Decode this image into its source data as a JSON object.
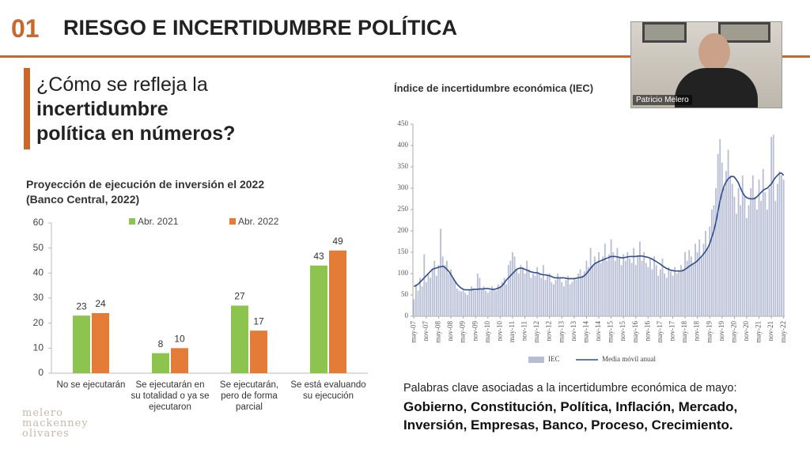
{
  "header": {
    "number": "01",
    "title": "RIESGO E INCERTIDUMBRE POLÍTICA"
  },
  "question": [
    "¿Cómo se refleja la",
    "incertidumbre",
    "política en números?"
  ],
  "keywords": {
    "intro": "Palabras clave asociadas a la incertidumbre económica de mayo:",
    "lines": [
      "Gobierno, Constitución, Política, Inflación, Mercado,",
      "Inversión, Empresas, Banco, Proceso, Crecimiento."
    ]
  },
  "logo": [
    "melero",
    "mackenney",
    "olivares"
  ],
  "webcam": {
    "name": "Patricio Melero"
  },
  "chart_data": [
    {
      "type": "bar",
      "title": [
        "Proyección de ejecución de inversión el 2022",
        "(Banco Central, 2022)"
      ],
      "categories": [
        "No se ejecutarán",
        "Se ejecutarán en su totalidad o ya se ejecutaron",
        "Se ejecutarán, pero de forma parcial",
        "Se está evaluando su ejecución"
      ],
      "series": [
        {
          "name": "Abr. 2021",
          "color": "#8dc450",
          "values": [
            23,
            8,
            27,
            43
          ]
        },
        {
          "name": "Abr. 2022",
          "color": "#e47b37",
          "values": [
            24,
            10,
            17,
            49
          ]
        }
      ],
      "ylim": [
        0,
        60
      ],
      "yticks": [
        0,
        10,
        20,
        30,
        40,
        50,
        60
      ]
    },
    {
      "type": "bar-line",
      "title": "Índice de incertidumbre económica  (IEC)",
      "categories": [
        "may-07",
        null,
        null,
        null,
        null,
        null,
        "nov-07",
        null,
        null,
        null,
        null,
        null,
        "may-08",
        null,
        null,
        null,
        null,
        null,
        "nov-08",
        null,
        null,
        null,
        null,
        null,
        "may-09",
        null,
        null,
        null,
        null,
        null,
        "nov-09",
        null,
        null,
        null,
        null,
        null,
        "may-10",
        null,
        null,
        null,
        null,
        null,
        "nov-10",
        null,
        null,
        null,
        null,
        null,
        "may-11",
        null,
        null,
        null,
        null,
        null,
        "nov-11",
        null,
        null,
        null,
        null,
        null,
        "may-12",
        null,
        null,
        null,
        null,
        null,
        "nov-12",
        null,
        null,
        null,
        null,
        null,
        "may-13",
        null,
        null,
        null,
        null,
        null,
        "nov-13",
        null,
        null,
        null,
        null,
        null,
        "may-14",
        null,
        null,
        null,
        null,
        null,
        "nov-14",
        null,
        null,
        null,
        null,
        null,
        "may-15",
        null,
        null,
        null,
        null,
        null,
        "nov-15",
        null,
        null,
        null,
        null,
        null,
        "may-16",
        null,
        null,
        null,
        null,
        null,
        "nov-16",
        null,
        null,
        null,
        null,
        null,
        "may-17",
        null,
        null,
        null,
        null,
        null,
        "nov-17",
        null,
        null,
        null,
        null,
        null,
        "may-18",
        null,
        null,
        null,
        null,
        null,
        "nov-18",
        null,
        null,
        null,
        null,
        null,
        "may-19",
        null,
        null,
        null,
        null,
        null,
        "nov-19",
        null,
        null,
        null,
        null,
        null,
        "may-20",
        null,
        null,
        null,
        null,
        null,
        "nov-20",
        null,
        null,
        null,
        null,
        null,
        "may-21",
        null,
        null,
        null,
        null,
        null,
        "nov-21",
        null,
        null,
        null,
        null,
        null,
        "may-22"
      ],
      "series": [
        {
          "name": "IEC",
          "color": "#b7bdd4",
          "values": [
            40,
            75,
            60,
            90,
            70,
            145,
            80,
            100,
            90,
            110,
            130,
            95,
            120,
            205,
            140,
            120,
            130,
            100,
            110,
            90,
            80,
            65,
            60,
            58,
            60,
            55,
            50,
            60,
            70,
            65,
            60,
            100,
            90,
            65,
            70,
            60,
            55,
            60,
            70,
            65,
            60,
            75,
            70,
            80,
            90,
            75,
            120,
            130,
            150,
            140,
            110,
            100,
            120,
            115,
            100,
            130,
            110,
            90,
            100,
            95,
            115,
            100,
            90,
            120,
            85,
            95,
            100,
            80,
            75,
            85,
            100,
            90,
            80,
            70,
            85,
            95,
            75,
            80,
            90,
            85,
            100,
            110,
            95,
            105,
            130,
            115,
            160,
            120,
            140,
            125,
            150,
            125,
            140,
            170,
            130,
            145,
            180,
            150,
            130,
            160,
            140,
            120,
            145,
            130,
            150,
            135,
            125,
            160,
            120,
            140,
            175,
            130,
            150,
            125,
            115,
            135,
            110,
            140,
            120,
            95,
            110,
            135,
            100,
            90,
            115,
            105,
            95,
            115,
            100,
            105,
            120,
            110,
            150,
            130,
            155,
            140,
            125,
            170,
            150,
            180,
            140,
            170,
            200,
            160,
            210,
            250,
            260,
            300,
            380,
            415,
            360,
            300,
            340,
            390,
            330,
            310,
            280,
            240,
            300,
            260,
            330,
            280,
            230,
            260,
            300,
            330,
            280,
            250,
            320,
            270,
            345,
            290,
            250,
            300,
            420,
            425,
            270,
            310,
            340,
            330,
            320
          ]
        },
        {
          "name": "Media móvil anual",
          "color": "#2f4d8e",
          "values": [
            70,
            72,
            75,
            80,
            85,
            90,
            95,
            100,
            105,
            110,
            112,
            113,
            115,
            116,
            117,
            115,
            110,
            105,
            98,
            90,
            82,
            75,
            70,
            66,
            63,
            62,
            62,
            62,
            62,
            63,
            63,
            63,
            64,
            64,
            64,
            65,
            65,
            64,
            63,
            63,
            64,
            66,
            68,
            72,
            78,
            85,
            90,
            95,
            100,
            105,
            110,
            112,
            113,
            112,
            110,
            108,
            106,
            104,
            103,
            102,
            102,
            100,
            98,
            97,
            97,
            96,
            95,
            93,
            91,
            90,
            90,
            90,
            90,
            90,
            89,
            88,
            88,
            88,
            88,
            89,
            90,
            91,
            92,
            95,
            100,
            106,
            112,
            118,
            123,
            126,
            128,
            130,
            132,
            134,
            136,
            138,
            140,
            140,
            140,
            139,
            138,
            137,
            137,
            138,
            139,
            140,
            140,
            140,
            140,
            141,
            141,
            141,
            140,
            139,
            138,
            136,
            134,
            131,
            128,
            125,
            122,
            118,
            115,
            112,
            110,
            108,
            107,
            106,
            106,
            106,
            106,
            107,
            110,
            113,
            117,
            120,
            123,
            126,
            130,
            135,
            140,
            146,
            152,
            160,
            170,
            185,
            200,
            220,
            245,
            270,
            290,
            305,
            315,
            322,
            326,
            328,
            326,
            320,
            312,
            300,
            290,
            282,
            278,
            276,
            275,
            275,
            276,
            280,
            285,
            290,
            295,
            298,
            300,
            305,
            310,
            318,
            325,
            330,
            335,
            335,
            330
          ]
        }
      ],
      "ylim": [
        0,
        450
      ],
      "yticks": [
        0,
        50,
        100,
        150,
        200,
        250,
        300,
        350,
        400,
        450
      ]
    }
  ]
}
